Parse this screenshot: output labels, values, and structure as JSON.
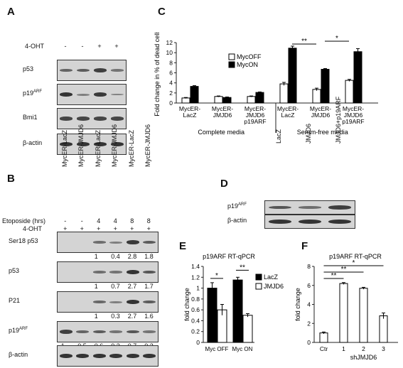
{
  "panels": {
    "A": {
      "letter": "A",
      "lanes": [
        "MycER-LacZ",
        "MycER-JMJD6",
        "MycER-LacZ",
        "MycER-JMJD6"
      ],
      "treatment_label": "4-OHT",
      "treatment_marks": [
        "-",
        "-",
        "+",
        "+"
      ],
      "blots": [
        {
          "label": "p53",
          "sup": "",
          "intensity": [
            0.45,
            0.5,
            0.75,
            0.3
          ]
        },
        {
          "label": "p19",
          "sup": "ARF",
          "intensity": [
            0.85,
            0.2,
            0.8,
            0.15
          ]
        },
        {
          "label": "Bmi1",
          "sup": "",
          "intensity": [
            0.7,
            0.7,
            0.7,
            0.7
          ]
        },
        {
          "label": "β-actin",
          "sup": "",
          "intensity": [
            0.85,
            0.85,
            0.85,
            0.85
          ]
        }
      ]
    },
    "B": {
      "letter": "B",
      "lanes": [
        "MycER-LacZ",
        "MycER-JMJD6",
        "MycER-LacZ",
        "MycER-JMJD6",
        "MycER-LacZ",
        "MycER-JMJD6"
      ],
      "etoposide_label": "Etoposide (hrs)",
      "etoposide_marks": [
        "-",
        "-",
        "4",
        "4",
        "8",
        "8"
      ],
      "treatment_label": "4-OHT",
      "treatment_marks": [
        "+",
        "+",
        "+",
        "+",
        "+",
        "+"
      ],
      "blots": [
        {
          "label": "Ser18 p53",
          "sup": "",
          "intensity": [
            0,
            0,
            0.35,
            0.2,
            0.8,
            0.5
          ],
          "quant": [
            "",
            "",
            "1",
            "0.4",
            "2.8",
            "1.8"
          ]
        },
        {
          "label": "p53",
          "sup": "",
          "intensity": [
            0,
            0,
            0.35,
            0.3,
            0.85,
            0.55
          ],
          "quant": [
            "",
            "",
            "1",
            "0.7",
            "2.7",
            "1.7"
          ]
        },
        {
          "label": "P21",
          "sup": "",
          "intensity": [
            0,
            0,
            0.4,
            0.2,
            0.85,
            0.5
          ],
          "quant": [
            "",
            "",
            "1",
            "0.3",
            "2.7",
            "1.6"
          ]
        },
        {
          "label": "p19",
          "sup": "ARF",
          "intensity": [
            0.75,
            0.45,
            0.5,
            0.3,
            0.55,
            0.3
          ],
          "quant": [
            "1",
            "0.5",
            "0.6",
            "0.3",
            "0.7",
            "0.3"
          ]
        },
        {
          "label": "β-actin",
          "sup": "",
          "intensity": [
            0.85,
            0.85,
            0.85,
            0.85,
            0.85,
            0.85
          ],
          "quant": []
        }
      ]
    },
    "C": {
      "letter": "C",
      "ylabel": "Fold change in % of dead cells",
      "groups": [
        "Complete media",
        "Serum-free media"
      ]
    },
    "D": {
      "letter": "D",
      "lanes": [
        "LacZ",
        "JMJD6",
        "JMJD6+p19ARF"
      ],
      "blots": [
        {
          "label": "p19",
          "sup": "ARF",
          "intensity": [
            0.55,
            0.35,
            0.75
          ]
        },
        {
          "label": "β-actin",
          "sup": "",
          "intensity": [
            0.85,
            0.85,
            0.85
          ]
        }
      ]
    },
    "E": {
      "letter": "E",
      "title": "p19ARF RT-qPCR",
      "ylabel": "fold change"
    },
    "F": {
      "letter": "F",
      "title": "p19ARF RT-qPCR",
      "ylabel": "fold change",
      "xlabel": "shJMJD6"
    }
  },
  "chart_data": [
    {
      "id": "C",
      "type": "bar",
      "categories": [
        "MycER-\nLacZ",
        "MycER-\nJMJD6",
        "MycER-\nJMJD6\np19ARF",
        "MycER-\nLacZ",
        "MycER-\nJMJD6",
        "MycER-\nJMJD6\np19ARF"
      ],
      "series": [
        {
          "name": "MycOFF",
          "values": [
            1.0,
            1.3,
            1.3,
            3.8,
            2.7,
            4.5
          ],
          "errors": [
            0.1,
            0.1,
            0.1,
            0.3,
            0.25,
            0.2
          ],
          "color": "#ffffff"
        },
        {
          "name": "MycON",
          "values": [
            3.3,
            1.1,
            2.1,
            10.9,
            6.7,
            10.2
          ],
          "errors": [
            0.15,
            0.1,
            0.1,
            0.4,
            0.15,
            0.6
          ],
          "color": "#000000"
        }
      ],
      "ylim": [
        0,
        12
      ],
      "yticks": [
        0,
        2,
        4,
        6,
        8,
        10,
        12
      ],
      "legend": "top-left",
      "significance": [
        {
          "text": "**",
          "from": 3,
          "to": 4
        },
        {
          "text": "*",
          "from": 4,
          "to": 5
        }
      ]
    },
    {
      "id": "E",
      "type": "bar",
      "categories": [
        "Myc OFF",
        "Myc ON"
      ],
      "series": [
        {
          "name": "LacZ",
          "values": [
            1.0,
            1.15
          ],
          "errors": [
            0.1,
            0.05
          ],
          "color": "#000000"
        },
        {
          "name": "JMJD6",
          "values": [
            0.6,
            0.5
          ],
          "errors": [
            0.1,
            0.03
          ],
          "color": "#ffffff"
        }
      ],
      "ylim": [
        0,
        1.4
      ],
      "yticks": [
        0,
        0.2,
        0.4,
        0.6,
        0.8,
        1,
        1.2,
        1.4
      ],
      "legend": "right",
      "significance": [
        {
          "text": "*",
          "group": 0
        },
        {
          "text": "**",
          "group": 1
        }
      ]
    },
    {
      "id": "F",
      "type": "bar",
      "categories": [
        "Ctr",
        "1",
        "2",
        "3"
      ],
      "values": [
        1.0,
        6.2,
        5.7,
        2.8
      ],
      "errors": [
        0.1,
        0.1,
        0.1,
        0.3
      ],
      "ylim": [
        0,
        8
      ],
      "yticks": [
        0,
        2,
        4,
        6,
        8
      ],
      "significance": [
        {
          "text": "**",
          "to": 1
        },
        {
          "text": "**",
          "to": 2
        },
        {
          "text": "*",
          "to": 3
        }
      ]
    }
  ]
}
